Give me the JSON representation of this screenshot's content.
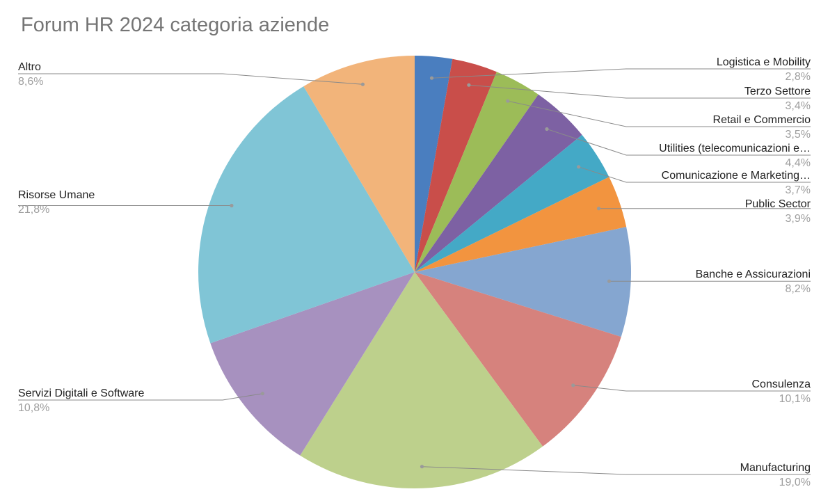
{
  "chart_data": {
    "type": "pie",
    "title": "Forum HR 2024 categoria aziende",
    "slices": [
      {
        "label": "Logistica e Mobility",
        "value": 2.8,
        "pct_label": "2,8%",
        "color": "#4a7ebf"
      },
      {
        "label": "Terzo Settore",
        "value": 3.4,
        "pct_label": "3,4%",
        "color": "#c94e4a"
      },
      {
        "label": "Retail e Commercio",
        "value": 3.5,
        "pct_label": "3,5%",
        "color": "#9cbc58"
      },
      {
        "label": "Utilities (telecomunicazioni e…",
        "value": 4.4,
        "pct_label": "4,4%",
        "color": "#7d61a3"
      },
      {
        "label": "Comunicazione e Marketing…",
        "value": 3.7,
        "pct_label": "3,7%",
        "color": "#44a9c6"
      },
      {
        "label": "Public Sector",
        "value": 3.9,
        "pct_label": "3,9%",
        "color": "#f2943f"
      },
      {
        "label": "Banche e Assicurazioni",
        "value": 8.2,
        "pct_label": "8,2%",
        "color": "#85a6d0"
      },
      {
        "label": "Consulenza",
        "value": 10.1,
        "pct_label": "10,1%",
        "color": "#d6827d"
      },
      {
        "label": "Manufacturing",
        "value": 19.0,
        "pct_label": "19,0%",
        "color": "#bdd08c"
      },
      {
        "label": "Servizi Digitali e Software",
        "value": 10.8,
        "pct_label": "10,8%",
        "color": "#a791bf"
      },
      {
        "label": "Risorse Umane",
        "value": 21.8,
        "pct_label": "21,8%",
        "color": "#80c5d6"
      },
      {
        "label": "Altro",
        "value": 8.6,
        "pct_label": "8,6%",
        "color": "#f2b47a"
      }
    ],
    "legend": "none"
  }
}
